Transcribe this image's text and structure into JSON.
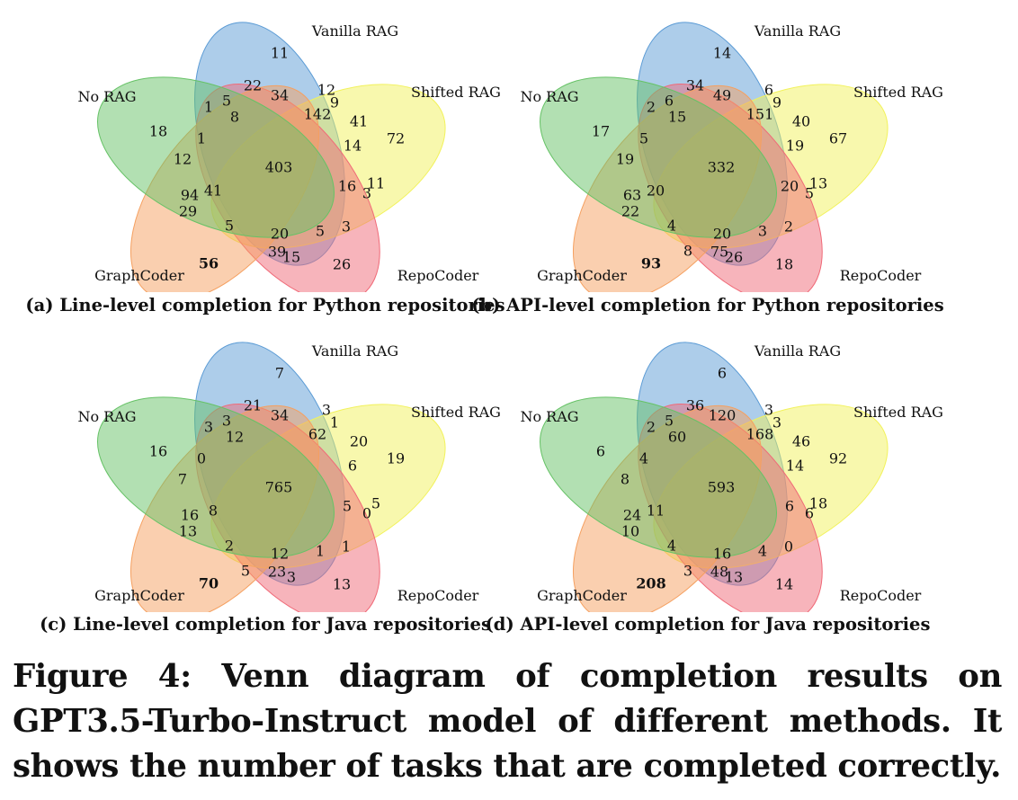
{
  "sets": [
    "Vanilla RAG",
    "Shifted RAG",
    "RepoCoder",
    "GraphCoder",
    "No RAG"
  ],
  "colors": {
    "Vanilla RAG": "#5b9bd5",
    "Shifted RAG": "#f2f25c",
    "RepoCoder": "#f06a78",
    "GraphCoder": "#f5a060",
    "No RAG": "#66c266"
  },
  "panels": [
    {
      "caption": "(a) Line-level completion for Python repositories",
      "regions": {
        "V": "11",
        "S": "72",
        "R": "26",
        "G": "56",
        "N": "18",
        "VN": "1",
        "VS": "12",
        "SR": "11",
        "RG": "15",
        "GN": "29",
        "VNx": "5",
        "VNy": "8",
        "VSx": "9",
        "SRx": "3",
        "RGx": "39",
        "GNx": "94",
        "VG": "22",
        "VSN": "34",
        "VSa": "142",
        "SN": "41",
        "SRa": "14",
        "SRb": "16",
        "VR": "3",
        "RGa": "20",
        "RGb": "5",
        "RGc": "5",
        "GNa": "41",
        "N2": "12",
        "Nb": "1",
        "center": "403"
      }
    },
    {
      "caption": "(b) API-level completion for Python repositories",
      "regions": {
        "V": "14",
        "S": "67",
        "R": "18",
        "G": "93",
        "N": "17",
        "VN": "2",
        "VS": "6",
        "SR": "13",
        "RG": "26",
        "GN": "22",
        "VNx": "6",
        "VNy": "15",
        "VSx": "9",
        "SRx": "5",
        "RGx": "75",
        "GNx": "63",
        "VG": "34",
        "VSN": "49",
        "VSa": "151",
        "SN": "40",
        "SRa": "19",
        "SRb": "20",
        "VR": "2",
        "RGa": "20",
        "RGb": "3",
        "RGc": "4",
        "GNa": "20",
        "N2": "19",
        "Nb": "5",
        "RGd": "8",
        "center": "332"
      }
    },
    {
      "caption": "(c) Line-level completion for Java repositories",
      "regions": {
        "V": "7",
        "S": "19",
        "R": "13",
        "G": "70",
        "N": "16",
        "VN": "3",
        "VS": "3",
        "SR": "5",
        "RG": "3",
        "GN": "13",
        "VNx": "3",
        "VNy": "12",
        "VSx": "1",
        "SRx": "0",
        "RGx": "23",
        "GNx": "16",
        "VG": "21",
        "VSN": "34",
        "VSa": "62",
        "SN": "20",
        "SRa": "6",
        "SRb": "5",
        "VR": "1",
        "RGa": "12",
        "RGb": "1",
        "RGc": "2",
        "GNa": "8",
        "N2": "7",
        "Nb": "0",
        "RGd": "5",
        "center": "765"
      }
    },
    {
      "caption": "(d) API-level completion for Java repositories",
      "regions": {
        "V": "6",
        "S": "92",
        "R": "14",
        "G": "208",
        "N": "6",
        "VN": "2",
        "VS": "3",
        "SR": "18",
        "RG": "13",
        "GN": "10",
        "VNx": "5",
        "VNy": "60",
        "VSx": "3",
        "SRx": "6",
        "RGx": "48",
        "GNx": "24",
        "VG": "36",
        "VSN": "120",
        "VSa": "168",
        "SN": "46",
        "SRa": "14",
        "SRb": "6",
        "VR": "0",
        "RGa": "16",
        "RGb": "4",
        "RGc": "4",
        "GNa": "11",
        "N2": "8",
        "Nb": "4",
        "RGd": "3",
        "center": "593"
      }
    }
  ],
  "caption": "Figure 4: Venn diagram of completion results on GPT3.5-Turbo-Instruct model of different methods. It shows the number of tasks that are completed correctly."
}
